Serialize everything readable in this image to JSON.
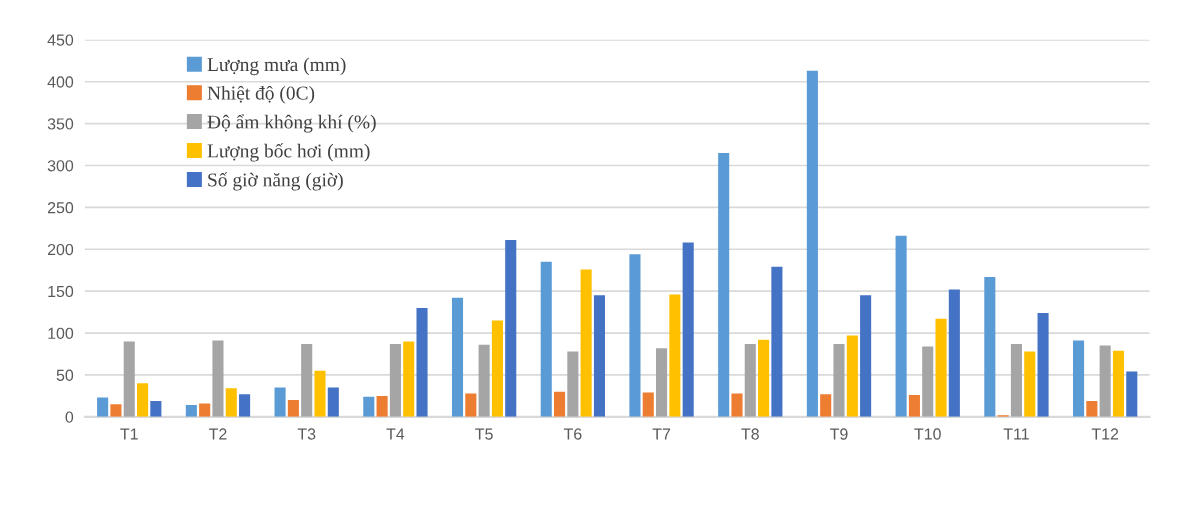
{
  "chart_data": {
    "type": "bar",
    "categories": [
      "T1",
      "T2",
      "T3",
      "T4",
      "T5",
      "T6",
      "T7",
      "T8",
      "T9",
      "T10",
      "T11",
      "T12"
    ],
    "series": [
      {
        "name": "Lượng mưa (mm)",
        "color": "#5b9bd5",
        "values": [
          23,
          14,
          35,
          24,
          142,
          185,
          194,
          315,
          413,
          216,
          167,
          91
        ]
      },
      {
        "name": "Nhiệt độ (0C)",
        "color": "#ed7d31",
        "values": [
          15,
          16,
          20,
          25,
          28,
          30,
          29,
          28,
          27,
          26,
          2,
          19
        ]
      },
      {
        "name": "Độ ẩm không khí (%)",
        "color": "#a5a5a5",
        "values": [
          90,
          91,
          87,
          87,
          86,
          78,
          82,
          87,
          87,
          84,
          87,
          85
        ]
      },
      {
        "name": "Lượng bốc hơi (mm)",
        "color": "#ffc000",
        "values": [
          40,
          34,
          55,
          90,
          115,
          176,
          146,
          92,
          97,
          117,
          78,
          79
        ]
      },
      {
        "name": "Số giờ năng (giờ)",
        "color": "#4472c4",
        "values": [
          19,
          27,
          35,
          130,
          211,
          145,
          208,
          179,
          145,
          152,
          124,
          54
        ]
      }
    ],
    "ylim": [
      0,
      450
    ],
    "yticks": [
      0,
      50,
      100,
      150,
      200,
      250,
      300,
      350,
      400,
      450
    ],
    "grid": "y",
    "legend": "top left"
  }
}
